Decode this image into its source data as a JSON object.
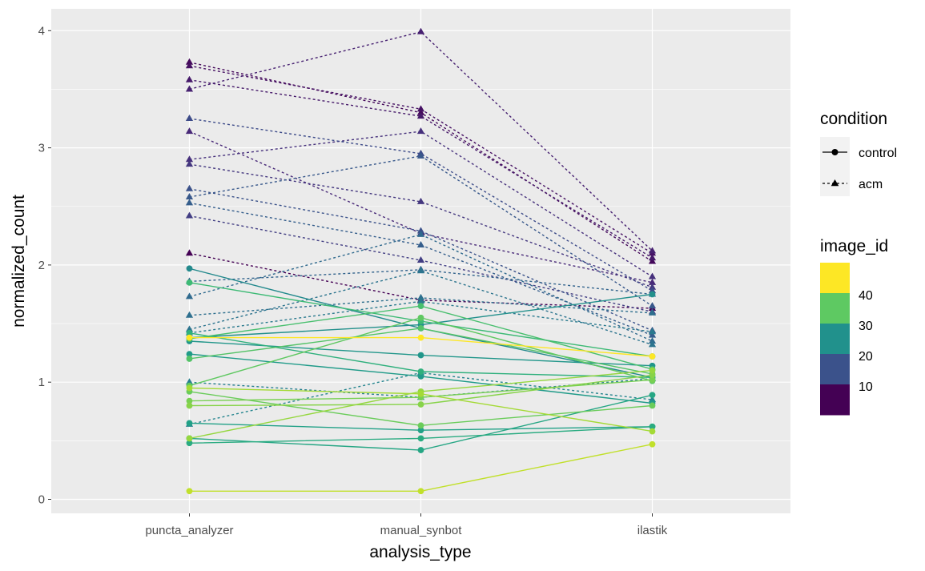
{
  "chart_data": {
    "type": "line",
    "xlabel": "analysis_type",
    "ylabel": "normalized_count",
    "categories": [
      "puncta_analyzer",
      "manual_synbot",
      "ilastik"
    ],
    "ylim": [
      -0.1,
      4.2
    ],
    "yticks": [
      "0",
      "1",
      "2",
      "3",
      "4"
    ],
    "grid": true,
    "legend_position": "right",
    "legend_condition": {
      "title": "condition",
      "items": [
        {
          "label": "control",
          "shape": "circle",
          "linetype": "solid"
        },
        {
          "label": "acm",
          "shape": "triangle",
          "linetype": "dashed"
        }
      ]
    },
    "legend_image_id": {
      "title": "image_id",
      "labels": [
        "40",
        "30",
        "20",
        "10"
      ],
      "colors": [
        "#fde725",
        "#5ec962",
        "#21918c",
        "#3b528b",
        "#440154"
      ]
    },
    "series": [
      {
        "condition": "acm",
        "image_id": 2,
        "values": [
          3.73,
          3.3,
          2.03
        ]
      },
      {
        "condition": "acm",
        "image_id": 3,
        "values": [
          3.7,
          3.33,
          2.1
        ]
      },
      {
        "condition": "acm",
        "image_id": 4,
        "values": [
          3.58,
          3.27,
          2.06
        ]
      },
      {
        "condition": "acm",
        "image_id": 5,
        "values": [
          3.5,
          3.99,
          2.12
        ]
      },
      {
        "condition": "acm",
        "image_id": 6,
        "values": [
          3.14,
          2.27,
          1.85
        ]
      },
      {
        "condition": "acm",
        "image_id": 7,
        "values": [
          2.9,
          3.14,
          1.9
        ]
      },
      {
        "condition": "acm",
        "image_id": 8,
        "values": [
          2.86,
          2.54,
          1.81
        ]
      },
      {
        "condition": "acm",
        "image_id": 9,
        "values": [
          2.42,
          2.04,
          1.6
        ]
      },
      {
        "condition": "acm",
        "image_id": 1,
        "values": [
          2.1,
          1.7,
          1.63
        ]
      },
      {
        "condition": "acm",
        "image_id": 11,
        "values": [
          3.25,
          2.95,
          1.78
        ]
      },
      {
        "condition": "acm",
        "image_id": 12,
        "values": [
          2.65,
          2.29,
          1.44
        ]
      },
      {
        "condition": "acm",
        "image_id": 13,
        "values": [
          2.58,
          2.93,
          1.65
        ]
      },
      {
        "condition": "acm",
        "image_id": 14,
        "values": [
          2.53,
          2.17,
          1.4
        ]
      },
      {
        "condition": "acm",
        "image_id": 15,
        "values": [
          1.86,
          1.96,
          1.75
        ]
      },
      {
        "condition": "acm",
        "image_id": 16,
        "values": [
          1.73,
          2.26,
          1.35
        ]
      },
      {
        "condition": "acm",
        "image_id": 17,
        "values": [
          1.57,
          1.72,
          1.59
        ]
      },
      {
        "condition": "acm",
        "image_id": 18,
        "values": [
          1.45,
          1.95,
          1.32
        ]
      },
      {
        "condition": "acm",
        "image_id": 19,
        "values": [
          1.42,
          1.69,
          1.43
        ]
      },
      {
        "condition": "acm",
        "image_id": 20,
        "values": [
          1.0,
          0.87,
          1.03
        ]
      },
      {
        "condition": "acm",
        "image_id": 21,
        "values": [
          0.64,
          1.08,
          0.85
        ]
      },
      {
        "condition": "control",
        "image_id": 22,
        "values": [
          1.97,
          1.46,
          1.04
        ]
      },
      {
        "condition": "control",
        "image_id": 23,
        "values": [
          1.38,
          1.49,
          1.75
        ]
      },
      {
        "condition": "control",
        "image_id": 24,
        "values": [
          1.35,
          1.23,
          1.14
        ]
      },
      {
        "condition": "control",
        "image_id": 25,
        "values": [
          1.24,
          1.05,
          0.82
        ]
      },
      {
        "condition": "control",
        "image_id": 26,
        "values": [
          0.65,
          0.59,
          0.62
        ]
      },
      {
        "condition": "control",
        "image_id": 27,
        "values": [
          0.52,
          0.42,
          0.89
        ]
      },
      {
        "condition": "control",
        "image_id": 28,
        "values": [
          0.48,
          0.52,
          0.62
        ]
      },
      {
        "condition": "control",
        "image_id": 29,
        "values": [
          1.42,
          1.09,
          1.04
        ]
      },
      {
        "condition": "control",
        "image_id": 31,
        "values": [
          1.85,
          1.52,
          1.22
        ]
      },
      {
        "condition": "control",
        "image_id": 32,
        "values": [
          1.37,
          1.65,
          1.11
        ]
      },
      {
        "condition": "control",
        "image_id": 33,
        "values": [
          1.2,
          1.46,
          1.07
        ]
      },
      {
        "condition": "control",
        "image_id": 34,
        "values": [
          0.97,
          1.55,
          1.01
        ]
      },
      {
        "condition": "control",
        "image_id": 35,
        "values": [
          0.92,
          0.63,
          0.8
        ]
      },
      {
        "condition": "control",
        "image_id": 36,
        "values": [
          0.84,
          0.87,
          1.02
        ]
      },
      {
        "condition": "control",
        "image_id": 37,
        "values": [
          0.8,
          0.81,
          1.06
        ]
      },
      {
        "condition": "control",
        "image_id": 38,
        "values": [
          0.52,
          0.92,
          1.1
        ]
      },
      {
        "condition": "control",
        "image_id": 39,
        "values": [
          0.95,
          0.9,
          0.58
        ]
      },
      {
        "condition": "control",
        "image_id": 41,
        "values": [
          0.07,
          0.07,
          0.47
        ]
      },
      {
        "condition": "control",
        "image_id": 45,
        "values": [
          1.38,
          1.38,
          1.22
        ]
      }
    ]
  }
}
